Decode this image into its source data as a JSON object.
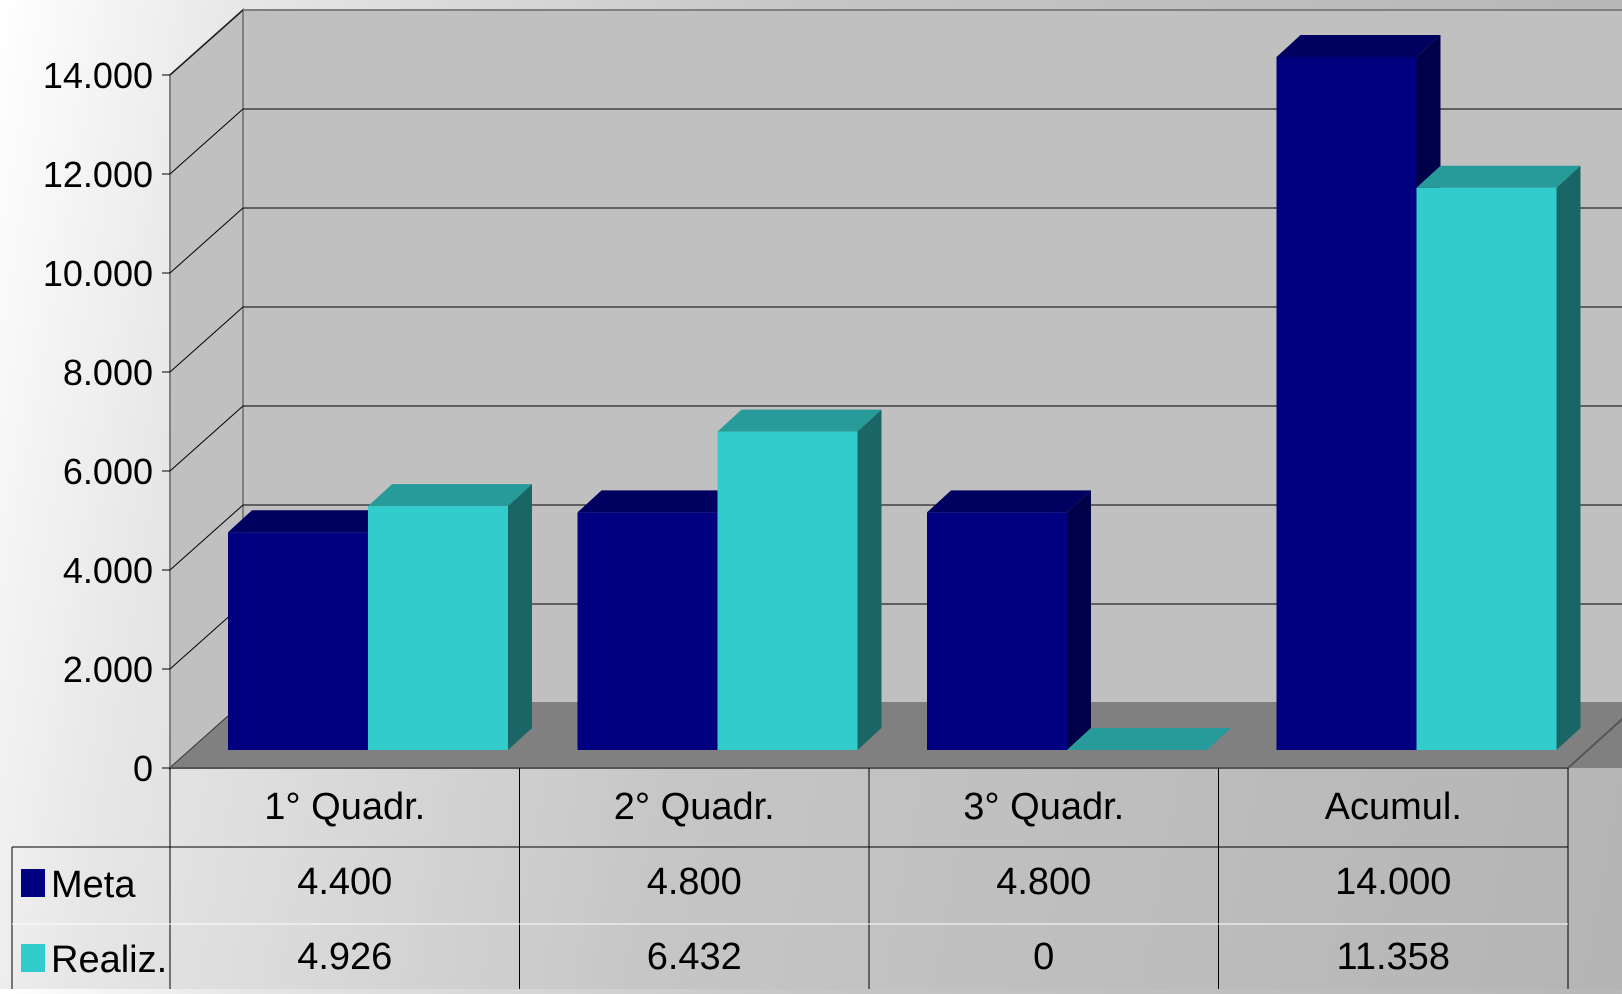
{
  "chart_data": {
    "type": "bar",
    "title": "",
    "xlabel": "",
    "ylabel": "",
    "categories": [
      "1° Quadr.",
      "2° Quadr.",
      "3° Quadr.",
      "Acumul."
    ],
    "series": [
      {
        "name": "Meta",
        "values": [
          4400,
          4800,
          4800,
          14000
        ],
        "color": "#000080",
        "color_top": "#000060",
        "color_side": "#000048"
      },
      {
        "name": "Realiz.",
        "values": [
          4926,
          6432,
          0,
          11358
        ],
        "color": "#33CCCC",
        "color_top": "#279A9A",
        "color_side": "#1A6666"
      }
    ],
    "value_labels": [
      [
        "4.400",
        "4.800",
        "4.800",
        "14.000"
      ],
      [
        "4.926",
        "6.432",
        "0",
        "11.358"
      ]
    ],
    "y_ticks": [
      0,
      2000,
      4000,
      6000,
      8000,
      10000,
      12000,
      14000
    ],
    "y_tick_labels": [
      "0",
      "2.000",
      "4.000",
      "6.000",
      "8.000",
      "10.000",
      "12.000",
      "14.000"
    ],
    "ylim": [
      0,
      14000
    ],
    "grid": true,
    "projection": "3d",
    "legend": "data-table-left",
    "data_table": true
  }
}
